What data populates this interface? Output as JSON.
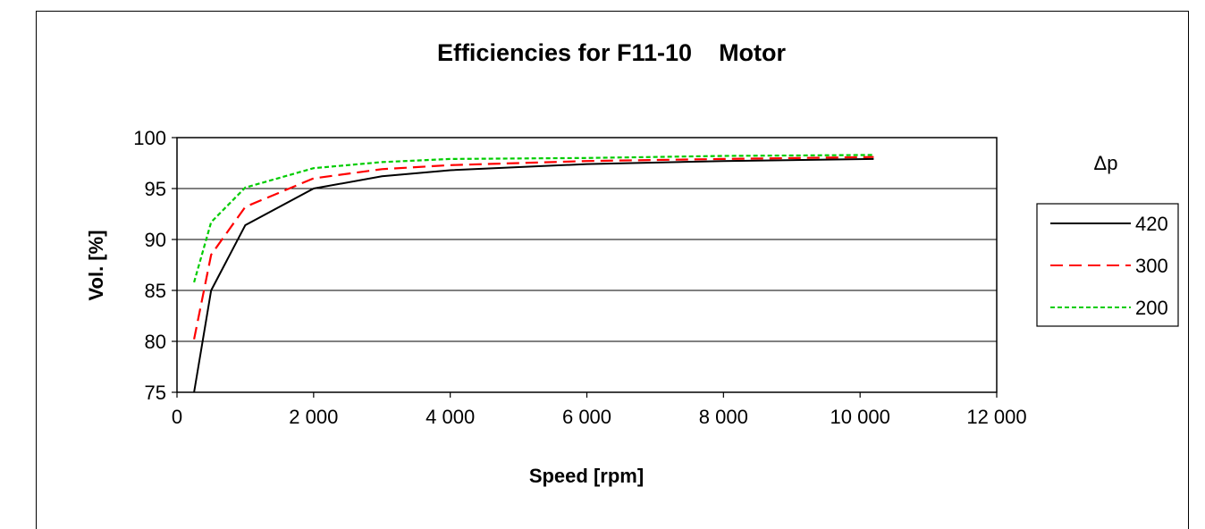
{
  "chart_data": {
    "type": "line",
    "title": "Efficiencies for F11-10    Motor",
    "xlabel": "Speed [rpm]",
    "ylabel": "Vol. [%]",
    "xlim": [
      0,
      12000
    ],
    "ylim": [
      75,
      100
    ],
    "x_ticks": [
      "0",
      "2 000",
      "4 000",
      "6 000",
      "8 000",
      "10 000",
      "12 000"
    ],
    "y_ticks": [
      "75",
      "80",
      "85",
      "90",
      "95",
      "100"
    ],
    "grid": "horizontal",
    "legend": {
      "title": "Δp",
      "placement": "right"
    },
    "series": [
      {
        "name": "420",
        "color": "#000000",
        "style": "solid",
        "x": [
          250,
          500,
          1000,
          2000,
          3000,
          4000,
          6000,
          8000,
          10200
        ],
        "y": [
          75.0,
          85.0,
          91.4,
          95.0,
          96.2,
          96.8,
          97.4,
          97.7,
          97.9
        ]
      },
      {
        "name": "300",
        "color": "#ff0000",
        "style": "dashed",
        "x": [
          250,
          500,
          1000,
          2000,
          3000,
          4000,
          6000,
          8000,
          10200
        ],
        "y": [
          80.2,
          88.5,
          93.2,
          96.0,
          96.9,
          97.3,
          97.7,
          97.9,
          98.1
        ]
      },
      {
        "name": "200",
        "color": "#00cc00",
        "style": "dotted",
        "x": [
          250,
          500,
          1000,
          2000,
          3000,
          4000,
          6000,
          8000,
          10200
        ],
        "y": [
          85.8,
          91.7,
          95.1,
          97.0,
          97.6,
          97.9,
          98.0,
          98.2,
          98.3
        ]
      }
    ]
  }
}
